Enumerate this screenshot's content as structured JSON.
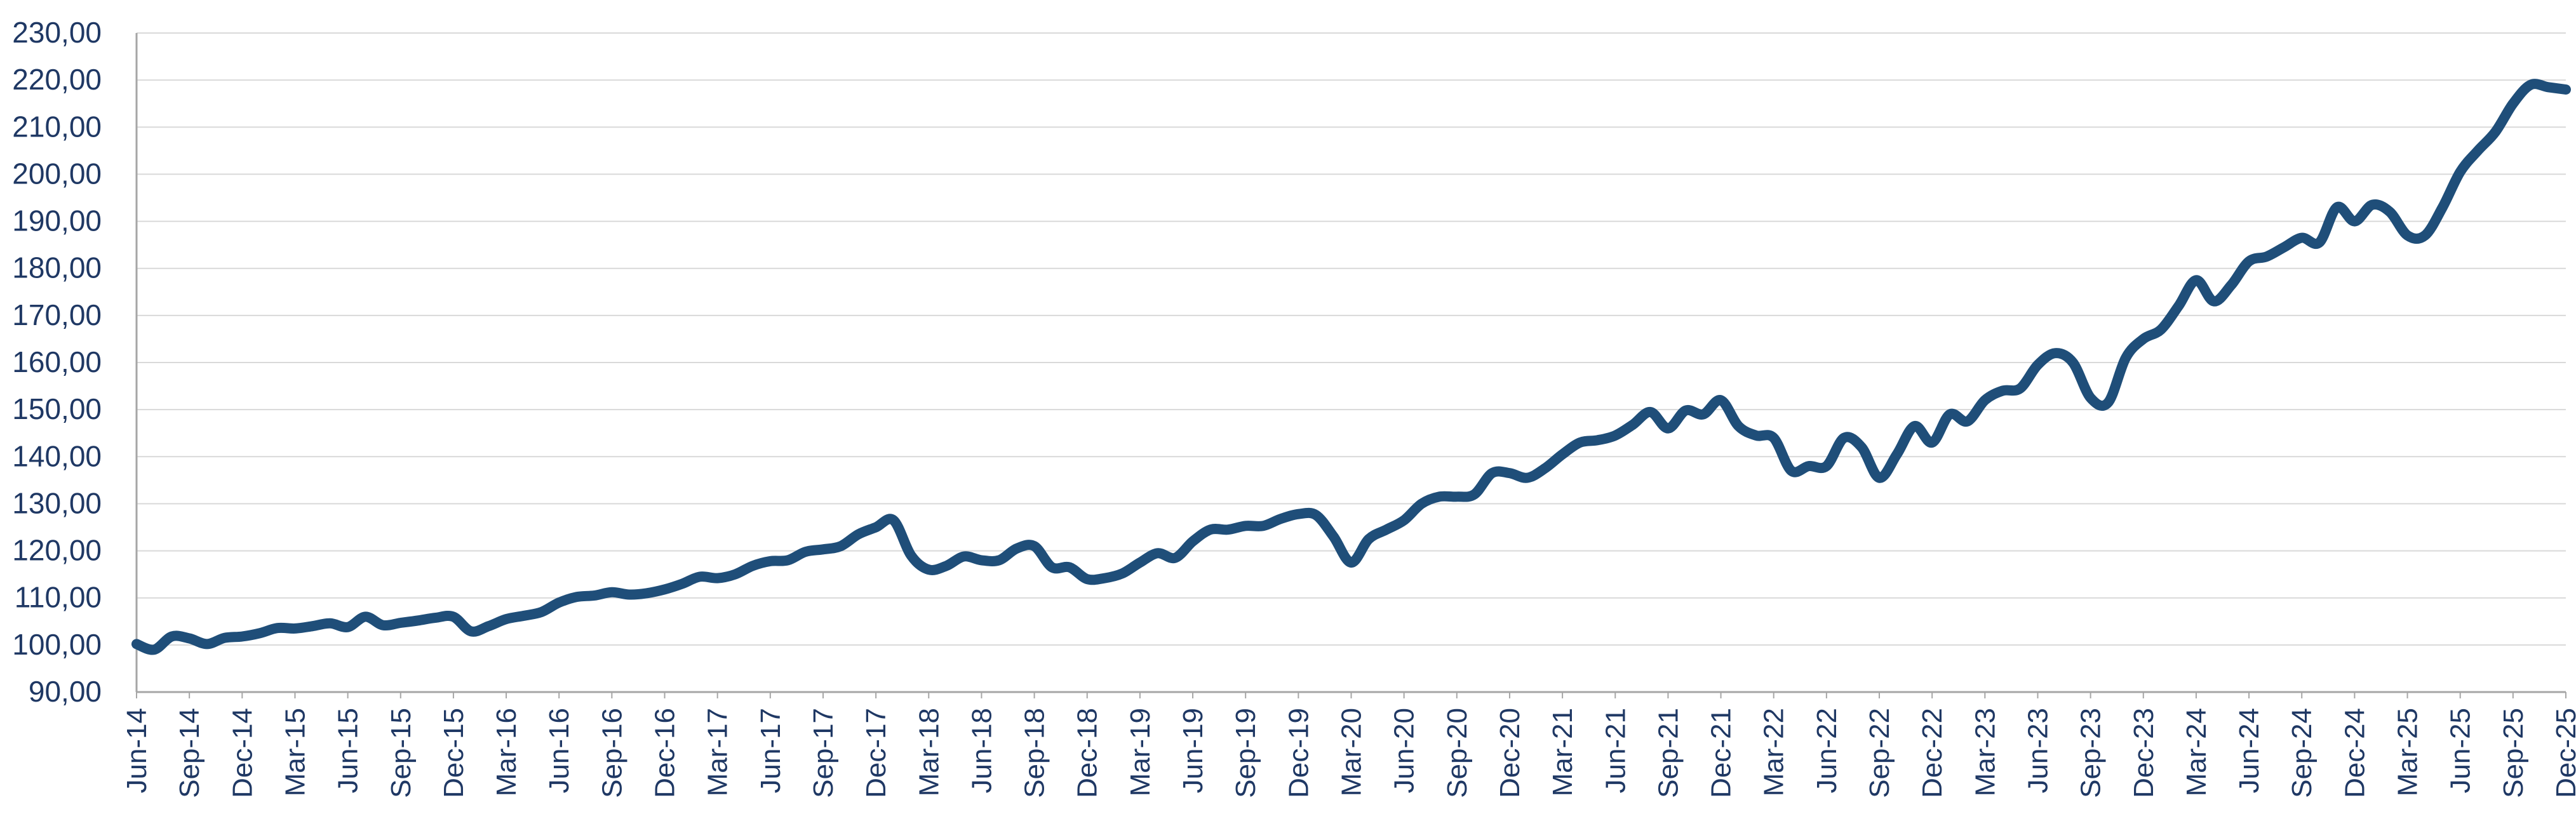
{
  "chart_data": {
    "type": "line",
    "title": "",
    "xlabel": "",
    "ylabel": "",
    "ylim": [
      90,
      230
    ],
    "y_ticks": [
      "90,00",
      "100,00",
      "110,00",
      "120,00",
      "130,00",
      "140,00",
      "150,00",
      "160,00",
      "170,00",
      "180,00",
      "190,00",
      "200,00",
      "210,00",
      "220,00",
      "230,00"
    ],
    "grid": true,
    "legend": "none",
    "line_color": "#1F4E79",
    "text_color": "#1F3864",
    "x_tick_labels": [
      "Jun-14",
      "Sep-14",
      "Dec-14",
      "Mar-15",
      "Jun-15",
      "Sep-15",
      "Dec-15",
      "Mar-16",
      "Jun-16",
      "Sep-16",
      "Dec-16",
      "Mar-17",
      "Jun-17",
      "Sep-17",
      "Dec-17",
      "Mar-18",
      "Jun-18",
      "Sep-18",
      "Dec-18",
      "Mar-19",
      "Jun-19",
      "Sep-19",
      "Dec-19",
      "Mar-20",
      "Jun-20",
      "Sep-20",
      "Dec-20",
      "Mar-21",
      "Jun-21",
      "Sep-21",
      "Dec-21",
      "Mar-22",
      "Jun-22",
      "Sep-22",
      "Dec-22",
      "Mar-23",
      "Jun-23",
      "Sep-23",
      "Dec-23",
      "Mar-24",
      "Jun-24",
      "Sep-24",
      "Dec-24",
      "Mar-25",
      "Jun-25",
      "Sep-25",
      "Dec-25"
    ],
    "x": [
      "Jun-14",
      "Jul-14",
      "Aug-14",
      "Sep-14",
      "Oct-14",
      "Nov-14",
      "Dec-14",
      "Jan-15",
      "Feb-15",
      "Mar-15",
      "Apr-15",
      "May-15",
      "Jun-15",
      "Jul-15",
      "Aug-15",
      "Sep-15",
      "Oct-15",
      "Nov-15",
      "Dec-15",
      "Jan-16",
      "Feb-16",
      "Mar-16",
      "Apr-16",
      "May-16",
      "Jun-16",
      "Jul-16",
      "Aug-16",
      "Sep-16",
      "Oct-16",
      "Nov-16",
      "Dec-16",
      "Jan-17",
      "Feb-17",
      "Mar-17",
      "Apr-17",
      "May-17",
      "Jun-17",
      "Jul-17",
      "Aug-17",
      "Sep-17",
      "Oct-17",
      "Nov-17",
      "Dec-17",
      "Jan-18",
      "Feb-18",
      "Mar-18",
      "Apr-18",
      "May-18",
      "Jun-18",
      "Jul-18",
      "Aug-18",
      "Sep-18",
      "Oct-18",
      "Nov-18",
      "Dec-18",
      "Jan-19",
      "Feb-19",
      "Mar-19",
      "Apr-19",
      "May-19",
      "Jun-19",
      "Jul-19",
      "Aug-19",
      "Sep-19",
      "Oct-19",
      "Nov-19",
      "Dec-19",
      "Jan-20",
      "Feb-20",
      "Mar-20",
      "Apr-20",
      "May-20",
      "Jun-20",
      "Jul-20",
      "Aug-20",
      "Sep-20",
      "Oct-20",
      "Nov-20",
      "Dec-20",
      "Jan-21",
      "Feb-21",
      "Mar-21",
      "Apr-21",
      "May-21",
      "Jun-21",
      "Jul-21",
      "Aug-21",
      "Sep-21",
      "Oct-21",
      "Nov-21",
      "Dec-21",
      "Jan-22",
      "Feb-22",
      "Mar-22",
      "Apr-22",
      "May-22",
      "Jun-22",
      "Jul-22",
      "Aug-22",
      "Sep-22",
      "Oct-22",
      "Nov-22",
      "Dec-22",
      "Jan-23",
      "Feb-23",
      "Mar-23",
      "Apr-23",
      "May-23",
      "Jun-23",
      "Jul-23",
      "Aug-23",
      "Sep-23",
      "Oct-23",
      "Nov-23",
      "Dec-23",
      "Jan-24",
      "Feb-24",
      "Mar-24",
      "Apr-24",
      "May-24",
      "Jun-24",
      "Jul-24",
      "Aug-24",
      "Sep-24",
      "Oct-24",
      "Nov-24",
      "Dec-24",
      "Jan-25",
      "Feb-25",
      "Mar-25",
      "Apr-25",
      "May-25",
      "Jun-25",
      "Jul-25",
      "Aug-25",
      "Sep-25",
      "Oct-25",
      "Nov-25",
      "Dec-25"
    ],
    "series": [
      {
        "values": [
          100.2,
          99.0,
          101.8,
          101.4,
          100.2,
          101.5,
          101.8,
          102.5,
          103.6,
          103.5,
          104.0,
          104.6,
          103.8,
          106.0,
          104.2,
          104.7,
          105.2,
          105.8,
          106.0,
          102.9,
          104.0,
          105.5,
          106.2,
          107.0,
          109.0,
          110.2,
          110.5,
          111.2,
          110.7,
          111.0,
          111.8,
          113.0,
          114.5,
          114.2,
          115.0,
          116.8,
          117.8,
          118.0,
          119.8,
          120.3,
          121.0,
          123.5,
          125.0,
          126.5,
          119.0,
          116.0,
          116.8,
          118.8,
          118.0,
          118.0,
          120.5,
          121.0,
          116.5,
          116.5,
          114.0,
          114.2,
          115.2,
          117.5,
          119.5,
          118.5,
          122.0,
          124.5,
          124.5,
          125.3,
          125.3,
          126.8,
          127.8,
          127.6,
          123.0,
          117.5,
          122.5,
          124.5,
          126.5,
          130.0,
          131.5,
          131.5,
          132.0,
          136.5,
          136.5,
          135.5,
          137.5,
          140.5,
          143.0,
          143.5,
          144.5,
          146.8,
          149.5,
          146.0,
          149.8,
          149.0,
          152.0,
          146.5,
          144.5,
          144.0,
          137.0,
          138.0,
          138.0,
          144.0,
          142.0,
          135.5,
          140.5,
          146.5,
          143.0,
          149.0,
          147.5,
          152.0,
          154.0,
          154.5,
          159.5,
          162.0,
          160.0,
          152.5,
          151.5,
          161.0,
          165.0,
          167.0,
          172.0,
          177.5,
          173.0,
          176.5,
          181.5,
          182.5,
          184.5,
          186.5,
          185.5,
          193.0,
          190.0,
          193.5,
          192.0,
          187.0,
          187.0,
          193.0,
          200.5,
          205.0,
          209.0,
          215.0,
          219.0,
          218.5,
          218.0
        ]
      }
    ]
  }
}
